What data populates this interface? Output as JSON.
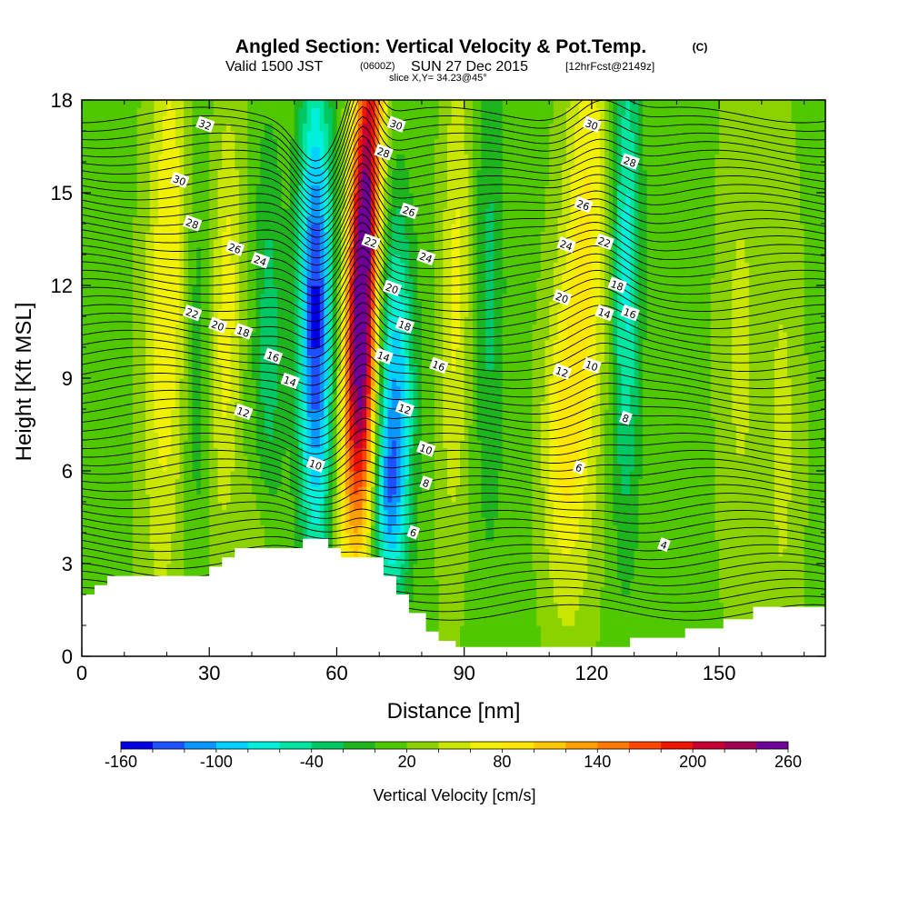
{
  "header": {
    "title": "Angled Section: Vertical Velocity & Pot.Temp.",
    "copyright": "(C)",
    "valid_prefix": "Valid 1500 JST",
    "valid_utc": "(0600Z)",
    "valid_date": "SUN 27 Dec 2015",
    "forecast": "[12hrFcst@2149z]",
    "slice": "slice X,Y= 34.23@45°"
  },
  "chart_data": {
    "type": "heatmap",
    "title": "Angled Section: Vertical Velocity & Pot.Temp.",
    "xlabel": "Distance [nm]",
    "ylabel": "Height [Kft MSL]",
    "xlim": [
      0,
      175
    ],
    "ylim": [
      0,
      18
    ],
    "x_ticks": [
      0,
      30,
      60,
      90,
      120,
      150
    ],
    "y_ticks": [
      0,
      3,
      6,
      9,
      12,
      15,
      18
    ],
    "colorbar": {
      "label": "Vertical Velocity [cm/s]",
      "tick_labels": [
        "-160",
        "-100",
        "-40",
        "20",
        "80",
        "140",
        "200",
        "260"
      ],
      "tick_values": [
        -160,
        -100,
        -40,
        20,
        80,
        140,
        200,
        260
      ],
      "range": [
        -160,
        260
      ],
      "step": 20,
      "colors": [
        "#0000e6",
        "#1e50ff",
        "#0a96ff",
        "#00d2ff",
        "#00f0dc",
        "#00e6a0",
        "#00c864",
        "#1eb41e",
        "#50c800",
        "#8cd200",
        "#c8e600",
        "#f0f000",
        "#ffe600",
        "#ffc800",
        "#ffa000",
        "#ff7800",
        "#ff4600",
        "#f01400",
        "#c80032",
        "#a00050",
        "#6e0096"
      ]
    },
    "terrain_kft": [
      [
        0,
        2.0
      ],
      [
        3,
        2.0
      ],
      [
        3,
        2.3
      ],
      [
        6,
        2.3
      ],
      [
        6,
        2.6
      ],
      [
        30,
        2.6
      ],
      [
        30,
        2.9
      ],
      [
        33,
        2.9
      ],
      [
        33,
        3.2
      ],
      [
        36,
        3.2
      ],
      [
        36,
        3.5
      ],
      [
        52,
        3.5
      ],
      [
        52,
        3.8
      ],
      [
        58,
        3.8
      ],
      [
        58,
        3.5
      ],
      [
        61,
        3.5
      ],
      [
        61,
        3.2
      ],
      [
        71,
        3.2
      ],
      [
        71,
        2.6
      ],
      [
        74,
        2.6
      ],
      [
        74,
        2.0
      ],
      [
        77,
        2.0
      ],
      [
        77,
        1.4
      ],
      [
        81,
        1.4
      ],
      [
        81,
        0.8
      ],
      [
        84,
        0.8
      ],
      [
        84,
        0.5
      ],
      [
        88,
        0.5
      ],
      [
        88,
        0.3
      ],
      [
        129,
        0.3
      ],
      [
        129,
        0.6
      ],
      [
        142,
        0.6
      ],
      [
        142,
        0.9
      ],
      [
        151,
        0.9
      ],
      [
        151,
        1.2
      ],
      [
        158,
        1.2
      ],
      [
        158,
        1.6
      ],
      [
        175,
        1.6
      ]
    ],
    "w_features": [
      {
        "x": 66,
        "z": 13,
        "wx": 2.5,
        "wz": 6,
        "tilt": 0.32,
        "amp": 250
      },
      {
        "x": 67,
        "z": 7.5,
        "wx": 2.0,
        "wz": 3.5,
        "tilt": 0.2,
        "amp": 90
      },
      {
        "x": 55,
        "z": 11,
        "wx": 2.8,
        "wz": 5.5,
        "tilt": 0.0,
        "amp": -160
      },
      {
        "x": 74,
        "z": 8.5,
        "wx": 3.0,
        "wz": 4,
        "tilt": 0.0,
        "amp": -110
      },
      {
        "x": 72,
        "z": 5,
        "wx": 2.5,
        "wz": 2,
        "tilt": 0.0,
        "amp": -70
      },
      {
        "x": 20,
        "z": 12,
        "wx": 3.5,
        "wz": 7,
        "tilt": 0.15,
        "amp": 65
      },
      {
        "x": 34,
        "z": 11,
        "wx": 2.5,
        "wz": 5,
        "tilt": 0.1,
        "amp": 55
      },
      {
        "x": 44,
        "z": 10,
        "wx": 2.5,
        "wz": 5,
        "tilt": 0.0,
        "amp": -45
      },
      {
        "x": 27,
        "z": 10,
        "wx": 2.0,
        "wz": 5,
        "tilt": 0.0,
        "amp": -30
      },
      {
        "x": 118,
        "z": 12,
        "wx": 4.0,
        "wz": 7,
        "tilt": 0.25,
        "amp": 75
      },
      {
        "x": 112,
        "z": 7,
        "wx": 3.0,
        "wz": 3,
        "tilt": 0.0,
        "amp": 40
      },
      {
        "x": 128,
        "z": 13,
        "wx": 2.5,
        "wz": 6,
        "tilt": 0.0,
        "amp": -85
      },
      {
        "x": 88,
        "z": 12,
        "wx": 2.5,
        "wz": 6,
        "tilt": 0.1,
        "amp": 50
      },
      {
        "x": 96,
        "z": 12,
        "wx": 2.5,
        "wz": 6,
        "tilt": 0.0,
        "amp": -40
      },
      {
        "x": 155,
        "z": 10,
        "wx": 3.5,
        "wz": 6,
        "tilt": 0.0,
        "amp": 30
      },
      {
        "x": 165,
        "z": 7,
        "wx": 3.0,
        "wz": 6,
        "tilt": 0.0,
        "amp": 30
      },
      {
        "x": 42,
        "z": 4,
        "wx": 3.0,
        "wz": 1.5,
        "tilt": 0.0,
        "amp": 25
      }
    ],
    "theta_levels": [
      4,
      6,
      8,
      10,
      12,
      14,
      16,
      18,
      20,
      22,
      24,
      26,
      28,
      30,
      32
    ],
    "theta_labels": [
      {
        "text": "32",
        "x": 29,
        "z": 17.2
      },
      {
        "text": "30",
        "x": 23,
        "z": 15.4
      },
      {
        "text": "28",
        "x": 26,
        "z": 14.0
      },
      {
        "text": "26",
        "x": 36,
        "z": 13.2
      },
      {
        "text": "24",
        "x": 42,
        "z": 12.8
      },
      {
        "text": "22",
        "x": 26,
        "z": 11.1
      },
      {
        "text": "20",
        "x": 32,
        "z": 10.7
      },
      {
        "text": "18",
        "x": 38,
        "z": 10.5
      },
      {
        "text": "16",
        "x": 45,
        "z": 9.7
      },
      {
        "text": "14",
        "x": 49,
        "z": 8.9
      },
      {
        "text": "12",
        "x": 38,
        "z": 7.9
      },
      {
        "text": "10",
        "x": 55,
        "z": 6.2
      },
      {
        "text": "30",
        "x": 74,
        "z": 17.2
      },
      {
        "text": "28",
        "x": 71,
        "z": 16.3
      },
      {
        "text": "26",
        "x": 77,
        "z": 14.4
      },
      {
        "text": "22",
        "x": 68,
        "z": 13.4
      },
      {
        "text": "24",
        "x": 81,
        "z": 12.9
      },
      {
        "text": "20",
        "x": 73,
        "z": 11.9
      },
      {
        "text": "18",
        "x": 76,
        "z": 10.7
      },
      {
        "text": "14",
        "x": 71,
        "z": 9.7
      },
      {
        "text": "16",
        "x": 84,
        "z": 9.4
      },
      {
        "text": "12",
        "x": 76,
        "z": 8.0
      },
      {
        "text": "10",
        "x": 81,
        "z": 6.7
      },
      {
        "text": "8",
        "x": 81,
        "z": 5.6
      },
      {
        "text": "6",
        "x": 78,
        "z": 4.0
      },
      {
        "text": "30",
        "x": 120,
        "z": 17.2
      },
      {
        "text": "28",
        "x": 129,
        "z": 16.0
      },
      {
        "text": "26",
        "x": 118,
        "z": 14.6
      },
      {
        "text": "24",
        "x": 114,
        "z": 13.3
      },
      {
        "text": "22",
        "x": 123,
        "z": 13.4
      },
      {
        "text": "20",
        "x": 113,
        "z": 11.6
      },
      {
        "text": "18",
        "x": 126,
        "z": 12.0
      },
      {
        "text": "14",
        "x": 123,
        "z": 11.1
      },
      {
        "text": "16",
        "x": 129,
        "z": 11.1
      },
      {
        "text": "12",
        "x": 113,
        "z": 9.2
      },
      {
        "text": "10",
        "x": 120,
        "z": 9.4
      },
      {
        "text": "8",
        "x": 128,
        "z": 7.7
      },
      {
        "text": "6",
        "x": 117,
        "z": 6.1
      },
      {
        "text": "4",
        "x": 137,
        "z": 3.6
      }
    ]
  }
}
